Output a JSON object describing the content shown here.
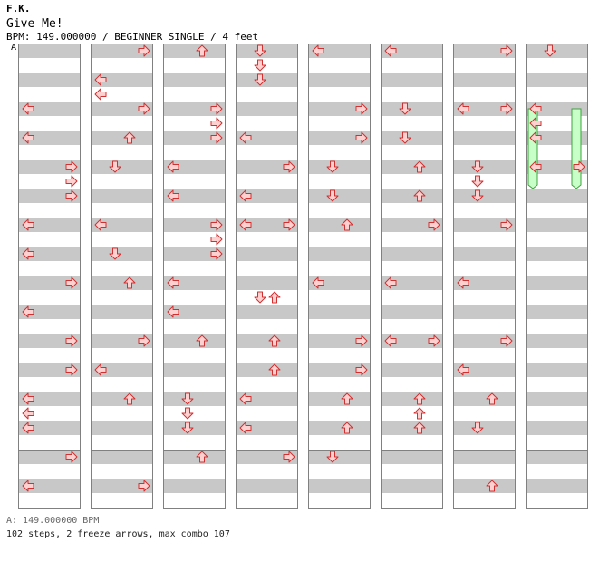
{
  "header": {
    "artist": "F.K.",
    "title": "Give Me!",
    "info": "BPM: 149.000000 / BEGINNER SINGLE / 4 feet"
  },
  "marker": "A",
  "footer": {
    "bpm_line": "A: 149.000000 BPM",
    "stats": "102 steps, 2 freeze arrows, max combo 107"
  },
  "colors": {
    "stripe": "#c8c8c8",
    "frame": "#808080",
    "arrow_fill": "#ffd0d0",
    "arrow_stroke": "#d03030",
    "freeze_fill": "#c8ffc8",
    "freeze_stroke": "#40a040"
  },
  "notes": [
    [
      [
        0,
        6,
        "R"
      ],
      [
        1,
        1,
        "L"
      ],
      [
        1,
        3,
        "L"
      ],
      [
        2,
        0,
        "L"
      ],
      [
        2,
        6,
        "R"
      ],
      [
        3,
        0,
        "L"
      ],
      [
        3,
        5,
        "U"
      ],
      [
        4,
        5,
        "R"
      ],
      [
        4,
        6,
        "R"
      ],
      [
        4,
        7,
        "R"
      ],
      [
        5,
        0,
        "L"
      ],
      [
        6,
        0,
        "L"
      ],
      [
        6,
        2,
        "R"
      ],
      [
        7,
        3,
        "L"
      ],
      [
        8,
        6,
        "R"
      ],
      [
        9,
        0,
        "L"
      ],
      [
        9,
        5,
        "R"
      ],
      [
        10,
        0,
        "L"
      ],
      [
        10,
        7,
        "R"
      ],
      [
        11,
        6,
        "R"
      ],
      [
        12,
        0,
        "L"
      ],
      [
        12,
        1,
        "L"
      ],
      [
        12,
        2,
        "L"
      ],
      [
        13,
        6,
        "R"
      ],
      [
        14,
        0,
        "L"
      ]
    ],
    [
      [
        0,
        4,
        "U"
      ],
      [
        2,
        0,
        "L"
      ],
      [
        2,
        4,
        "R"
      ],
      [
        3,
        0,
        "L"
      ],
      [
        3,
        2,
        "R"
      ],
      [
        3,
        4,
        "R"
      ],
      [
        4,
        0,
        "L"
      ],
      [
        4,
        2,
        "R"
      ],
      [
        4,
        4,
        "R"
      ],
      [
        5,
        0,
        "L"
      ],
      [
        6,
        2,
        "R"
      ],
      [
        6,
        4,
        "R"
      ],
      [
        6,
        6,
        "U"
      ],
      [
        7,
        0,
        "L"
      ],
      [
        8,
        2,
        "R"
      ],
      [
        9,
        0,
        "L"
      ],
      [
        9,
        6,
        "D"
      ],
      [
        10,
        0,
        "L"
      ],
      [
        10,
        4,
        "D"
      ],
      [
        10,
        5,
        "D"
      ],
      [
        10,
        6,
        "D"
      ],
      [
        11,
        4,
        "R"
      ],
      [
        11,
        6,
        "R"
      ],
      [
        13,
        6,
        "R"
      ],
      [
        14,
        0,
        "L"
      ]
    ],
    [
      [
        0,
        0,
        "L"
      ],
      [
        0,
        4,
        "R"
      ],
      [
        2,
        0,
        "L"
      ],
      [
        2,
        4,
        "R"
      ],
      [
        3,
        0,
        "L"
      ],
      [
        3,
        3,
        "R"
      ],
      [
        4,
        0,
        "L"
      ],
      [
        4,
        2,
        "R"
      ],
      [
        4,
        4,
        "R"
      ],
      [
        5,
        0,
        "L"
      ],
      [
        5,
        4,
        "R"
      ],
      [
        6,
        0,
        "L"
      ],
      [
        6,
        2,
        "U"
      ],
      [
        7,
        0,
        "L"
      ],
      [
        7,
        4,
        "R"
      ],
      [
        8,
        0,
        "L"
      ],
      [
        8,
        4,
        "R"
      ],
      [
        9,
        0,
        "L"
      ],
      [
        9,
        6,
        "U"
      ],
      [
        10,
        0,
        "L"
      ],
      [
        10,
        4,
        "D"
      ],
      [
        10,
        5,
        "D"
      ],
      [
        11,
        4,
        "R"
      ],
      [
        11,
        6,
        "R"
      ],
      [
        13,
        0,
        "L"
      ]
    ],
    [
      [
        0,
        6,
        "U"
      ],
      [
        2,
        0,
        "L"
      ],
      [
        2,
        6,
        "R"
      ],
      [
        3,
        0,
        "L"
      ],
      [
        3,
        3,
        "D"
      ],
      [
        4,
        0,
        "L"
      ],
      [
        4,
        2,
        "R"
      ],
      [
        4,
        6,
        "R"
      ],
      [
        5,
        0,
        "L"
      ],
      [
        5,
        2,
        "U"
      ],
      [
        6,
        0,
        "L"
      ],
      [
        6,
        6,
        "U"
      ],
      [
        7,
        0,
        "L"
      ],
      [
        7,
        5,
        "U"
      ],
      [
        8,
        0,
        "L"
      ],
      [
        8,
        6,
        "R"
      ],
      [
        9,
        0,
        "L"
      ],
      [
        9,
        6,
        "U"
      ],
      [
        10,
        0,
        "L"
      ],
      [
        10,
        4,
        "D"
      ],
      [
        10,
        6,
        "U"
      ],
      [
        11,
        4,
        "R"
      ],
      [
        12,
        0,
        "L"
      ],
      [
        13,
        6,
        "R"
      ],
      [
        14,
        0,
        "L"
      ]
    ]
  ],
  "freezes": [
    {
      "col": 0,
      "from": 4,
      "to": 9
    },
    {
      "col": 3,
      "from": 4,
      "to": 9
    }
  ]
}
